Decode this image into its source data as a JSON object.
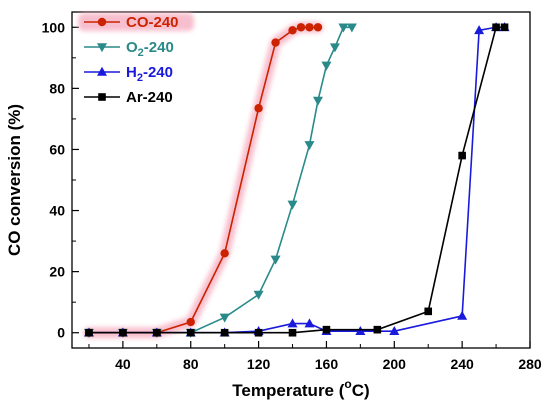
{
  "chart_data": {
    "type": "line",
    "xlabel": {
      "main": "Temperature (",
      "sup": "o",
      "tail": "C)"
    },
    "ylabel": "CO conversion (%)",
    "xlim": [
      10,
      280
    ],
    "ylim": [
      -5,
      105
    ],
    "xticks": [
      "40",
      "80",
      "120",
      "160",
      "200",
      "240",
      "280"
    ],
    "xtick_values": [
      40,
      80,
      120,
      160,
      200,
      240,
      280
    ],
    "xminor": [
      20,
      60,
      100,
      140,
      180,
      220,
      260
    ],
    "yticks": [
      "0",
      "20",
      "40",
      "60",
      "80",
      "100"
    ],
    "ytick_values": [
      0,
      20,
      40,
      60,
      80,
      100
    ],
    "yminor": [
      10,
      30,
      50,
      70,
      90
    ],
    "grid": false,
    "legend_position": "top-left",
    "series": [
      {
        "legend": {
          "main": "CO-240",
          "sub": "",
          "tail": ""
        },
        "color": "#cc2200",
        "marker": "circle",
        "highlight": true,
        "x": [
          20,
          40,
          60,
          80,
          100,
          120,
          130,
          140,
          145,
          150,
          155
        ],
        "y": [
          0,
          0,
          0,
          3.5,
          26,
          73.5,
          95,
          99,
          100,
          100,
          100
        ]
      },
      {
        "legend": {
          "main": "O",
          "sub": "2",
          "tail": "-240"
        },
        "color": "#2a8a8a",
        "marker": "triangle-down",
        "highlight": false,
        "x": [
          20,
          40,
          60,
          80,
          100,
          120,
          130,
          140,
          150,
          155,
          160,
          165,
          170,
          175
        ],
        "y": [
          0,
          0,
          0,
          0,
          5,
          12.5,
          24,
          42,
          61.5,
          76,
          87.5,
          93.5,
          100,
          100
        ]
      },
      {
        "legend": {
          "main": "H",
          "sub": "2",
          "tail": "-240"
        },
        "color": "#1a1adc",
        "marker": "triangle-up",
        "highlight": false,
        "x": [
          20,
          40,
          60,
          80,
          100,
          120,
          140,
          150,
          160,
          180,
          200,
          240,
          250,
          260,
          265
        ],
        "y": [
          0,
          0,
          0,
          0,
          0,
          0.5,
          3,
          3,
          0.5,
          0.5,
          0.5,
          5.5,
          99,
          100,
          100
        ]
      },
      {
        "legend": {
          "main": "Ar-240",
          "sub": "",
          "tail": ""
        },
        "color": "#000000",
        "marker": "square",
        "highlight": false,
        "x": [
          20,
          40,
          60,
          80,
          100,
          120,
          140,
          160,
          190,
          220,
          240,
          260,
          265
        ],
        "y": [
          0,
          0,
          0,
          0,
          0,
          0,
          0,
          1,
          1,
          7,
          58,
          100,
          100
        ]
      }
    ]
  }
}
